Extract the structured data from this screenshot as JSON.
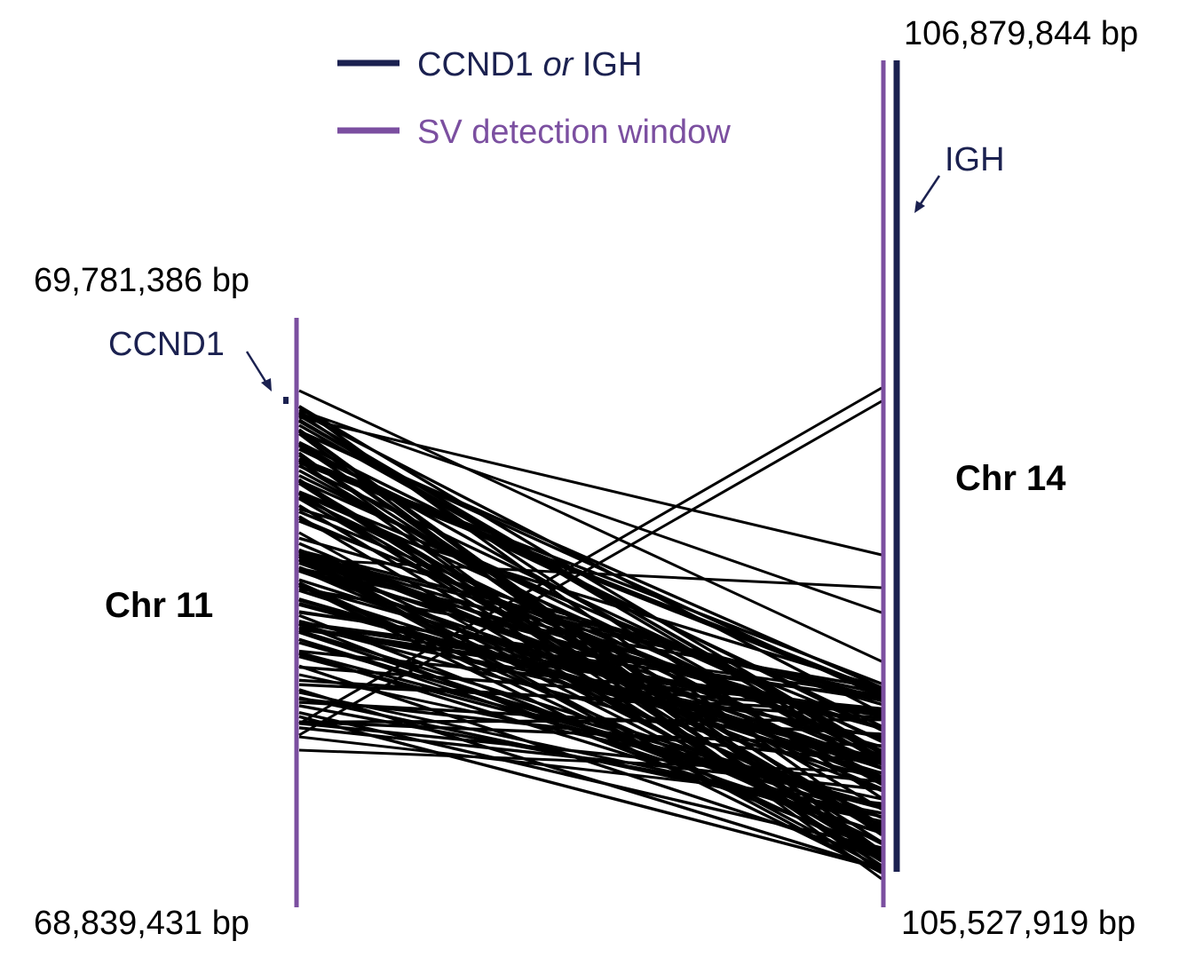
{
  "legend": {
    "gene_label_pre": "CCND1",
    "gene_label_or": "or",
    "gene_label_post": "IGH",
    "gene_color": "#1b2150",
    "window_label": "SV detection window",
    "window_color": "#7b4fa0"
  },
  "chr11": {
    "name": "Chr 11",
    "top_label": "69,781,386 bp",
    "bottom_label": "68,839,431 bp",
    "gene_label": "CCND1"
  },
  "chr14": {
    "name": "Chr 14",
    "top_label": "106,879,844 bp",
    "bottom_label": "105,527,919 bp",
    "gene_label": "IGH"
  },
  "links_color": "#000000"
}
